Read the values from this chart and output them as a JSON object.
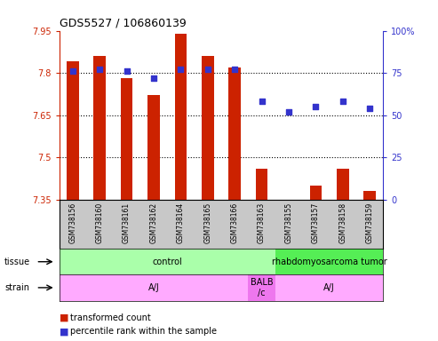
{
  "title": "GDS5527 / 106860139",
  "samples": [
    "GSM738156",
    "GSM738160",
    "GSM738161",
    "GSM738162",
    "GSM738164",
    "GSM738165",
    "GSM738166",
    "GSM738163",
    "GSM738155",
    "GSM738157",
    "GSM738158",
    "GSM738159"
  ],
  "bar_values": [
    7.84,
    7.86,
    7.78,
    7.72,
    7.94,
    7.86,
    7.82,
    7.46,
    7.35,
    7.4,
    7.46,
    7.38
  ],
  "bar_base": 7.35,
  "percentile_values": [
    76,
    77,
    76,
    72,
    77,
    77,
    77,
    58,
    52,
    55,
    58,
    54
  ],
  "ylim_left": [
    7.35,
    7.95
  ],
  "ylim_right": [
    0,
    100
  ],
  "yticks_left": [
    7.35,
    7.5,
    7.65,
    7.8,
    7.95
  ],
  "yticks_right": [
    0,
    25,
    50,
    75,
    100
  ],
  "bar_color": "#cc2200",
  "dot_color": "#3333cc",
  "tissue_labels": [
    {
      "text": "control",
      "start": 0,
      "end": 7,
      "color": "#aaffaa"
    },
    {
      "text": "rhabdomyosarcoma tumor",
      "start": 8,
      "end": 11,
      "color": "#55ee55"
    }
  ],
  "strain_labels": [
    {
      "text": "A/J",
      "start": 0,
      "end": 6,
      "color": "#ffaaff"
    },
    {
      "text": "BALB\n/c",
      "start": 7,
      "end": 7,
      "color": "#ee77ee"
    },
    {
      "text": "A/J",
      "start": 8,
      "end": 11,
      "color": "#ffaaff"
    }
  ],
  "legend_items": [
    {
      "label": "transformed count",
      "color": "#cc2200"
    },
    {
      "label": "percentile rank within the sample",
      "color": "#3333cc"
    }
  ],
  "tissue_row_label": "tissue",
  "strain_row_label": "strain",
  "left_axis_color": "#cc2200",
  "right_axis_color": "#3333cc",
  "bg_color": "#ffffff",
  "xlabels_bg": "#c8c8c8",
  "grid_yticks": [
    7.5,
    7.65,
    7.8
  ]
}
